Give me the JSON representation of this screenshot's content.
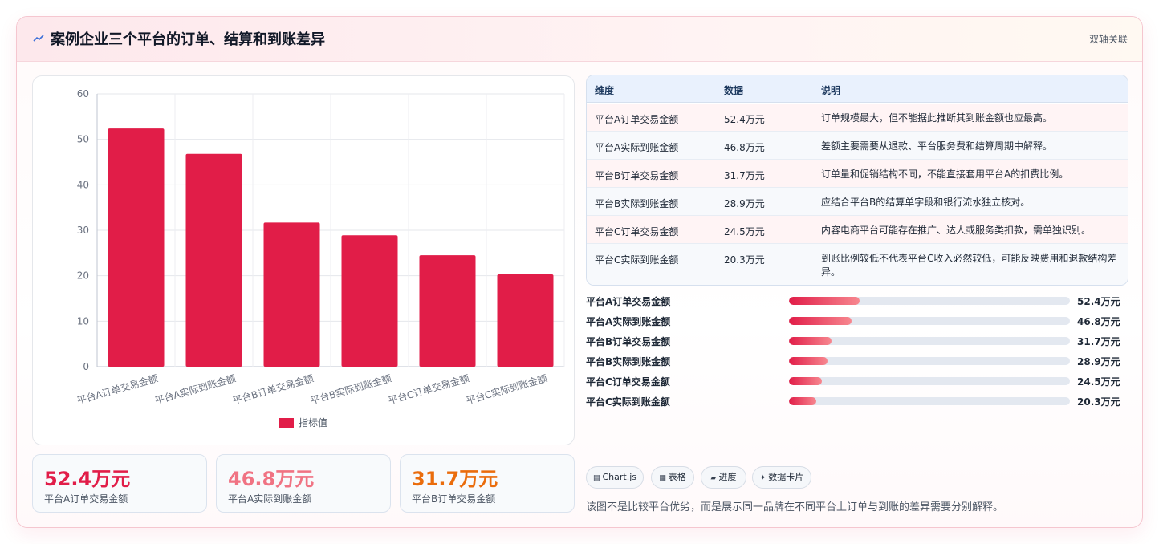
{
  "header": {
    "icon": "chart-line-icon",
    "title": "案例企业三个平台的订单、结算和到账差异",
    "dual_axis_label": "双轴关联"
  },
  "chart_data": {
    "type": "bar",
    "categories": [
      "平台A订单交易金额",
      "平台A实际到账金额",
      "平台B订单交易金额",
      "平台B实际到账金额",
      "平台C订单交易金额",
      "平台C实际到账金额"
    ],
    "series": [
      {
        "name": "指标值",
        "values": [
          52.4,
          46.8,
          31.7,
          28.9,
          24.5,
          20.3
        ],
        "color": "#e11d48"
      }
    ],
    "ylim": [
      0,
      60
    ],
    "yticks": [
      "0",
      "10",
      "20",
      "30",
      "40",
      "50",
      "60"
    ],
    "grid": true,
    "legend": "bottom-center"
  },
  "stats": [
    {
      "value": "52.4万元",
      "label": "平台A订单交易金额",
      "color": "#e11d48"
    },
    {
      "value": "46.8万元",
      "label": "平台A实际到账金额",
      "color": "#f07383"
    },
    {
      "value": "31.7万元",
      "label": "平台B订单交易金额",
      "color": "#ea6c0c"
    }
  ],
  "table": {
    "headers": [
      "维度",
      "数据",
      "说明"
    ],
    "rows": [
      [
        "平台A订单交易金额",
        "52.4万元",
        "订单规模最大，但不能据此推断其到账金额也应最高。"
      ],
      [
        "平台A实际到账金额",
        "46.8万元",
        "差额主要需要从退款、平台服务费和结算周期中解释。"
      ],
      [
        "平台B订单交易金额",
        "31.7万元",
        "订单量和促销结构不同，不能直接套用平台A的扣费比例。"
      ],
      [
        "平台B实际到账金额",
        "28.9万元",
        "应结合平台B的结算单字段和银行流水独立核对。"
      ],
      [
        "平台C订单交易金额",
        "24.5万元",
        "内容电商平台可能存在推广、达人或服务类扣款，需单独识别。"
      ],
      [
        "平台C实际到账金额",
        "20.3万元",
        "到账比例较低不代表平台C收入必然较低，可能反映费用和退款结构差异。"
      ]
    ]
  },
  "progress": [
    {
      "label": "平台A订单交易金额",
      "value": "52.4万元",
      "fraction": 0.25
    },
    {
      "label": "平台A实际到账金额",
      "value": "46.8万元",
      "fraction": 0.224
    },
    {
      "label": "平台B订单交易金额",
      "value": "31.7万元",
      "fraction": 0.152
    },
    {
      "label": "平台B实际到账金额",
      "value": "28.9万元",
      "fraction": 0.138
    },
    {
      "label": "平台C订单交易金额",
      "value": "24.5万元",
      "fraction": 0.117
    },
    {
      "label": "平台C实际到账金额",
      "value": "20.3万元",
      "fraction": 0.097
    }
  ],
  "chips": [
    {
      "icon": "chart-icon",
      "glyph": "▤",
      "label": "Chart.js"
    },
    {
      "icon": "table-icon",
      "glyph": "▦",
      "label": "表格"
    },
    {
      "icon": "progress-icon",
      "glyph": "▰",
      "label": "进度"
    },
    {
      "icon": "card-icon",
      "glyph": "✦",
      "label": "数据卡片"
    }
  ],
  "note": "该图不是比较平台优劣，而是展示同一品牌在不同平台上订单与到账的差异需要分别解释。"
}
